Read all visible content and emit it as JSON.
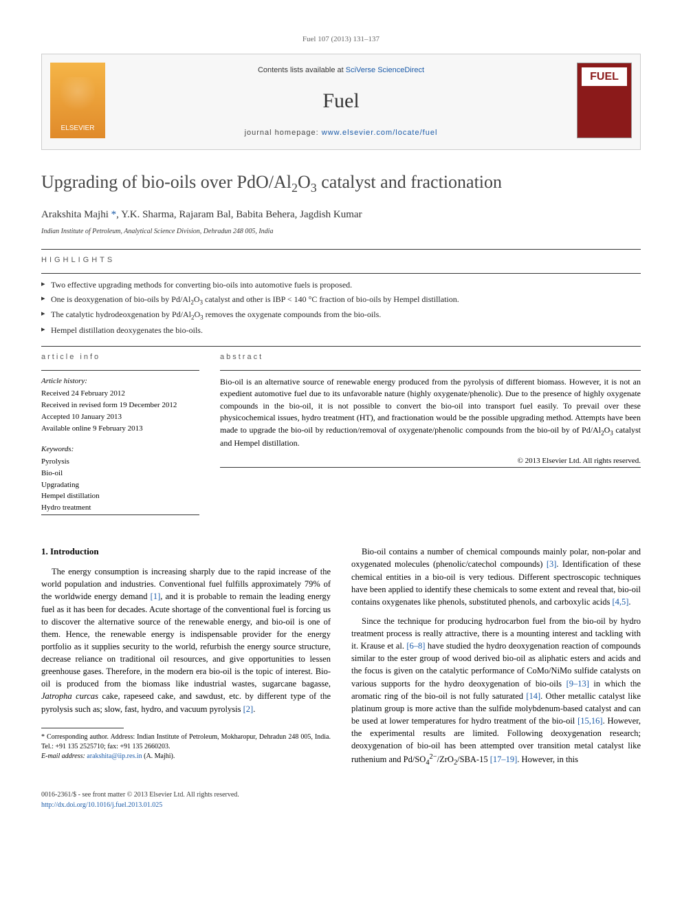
{
  "citation": "Fuel 107 (2013) 131–137",
  "header": {
    "contents_prefix": "Contents lists available at ",
    "contents_link": "SciVerse ScienceDirect",
    "journal_name": "Fuel",
    "homepage_prefix": "journal homepage: ",
    "homepage_url": "www.elsevier.com/locate/fuel",
    "publisher_logo_text": "ELSEVIER",
    "cover_title": "FUEL"
  },
  "title_html": "Upgrading of bio-oils over PdO/Al<sub>2</sub>O<sub>3</sub> catalyst and fractionation",
  "authors_html": "Arakshita Majhi <span class='star'>*</span>, Y.K. Sharma, Rajaram Bal, Babita Behera, Jagdish Kumar",
  "affiliation": "Indian Institute of Petroleum, Analytical Science Division, Dehradun 248 005, India",
  "highlights_label": "highlights",
  "highlights": [
    "Two effective upgrading methods for converting bio-oils into automotive fuels is proposed.",
    "One is deoxygenation of bio-oils by Pd/Al<sub>2</sub>O<sub>3</sub> catalyst and other is IBP < 140 °C fraction of bio-oils by Hempel distillation.",
    "The catalytic hydrodeoxgenation by Pd/Al<sub>2</sub>O<sub>3</sub> removes the oxygenate compounds from the bio-oils.",
    "Hempel distillation deoxygenates the bio-oils."
  ],
  "article_info": {
    "label": "article info",
    "history_label": "Article history:",
    "history": [
      "Received 24 February 2012",
      "Received in revised form 19 December 2012",
      "Accepted 10 January 2013",
      "Available online 9 February 2013"
    ],
    "keywords_label": "Keywords:",
    "keywords": [
      "Pyrolysis",
      "Bio-oil",
      "Upgradating",
      "Hempel distillation",
      "Hydro treatment"
    ]
  },
  "abstract": {
    "label": "abstract",
    "text_html": "Bio-oil is an alternative source of renewable energy produced from the pyrolysis of different biomass. However, it is not an expedient automotive fuel due to its unfavorable nature (highly oxygenate/phenolic). Due to the presence of highly oxygenate compounds in the bio-oil, it is not possible to convert the bio-oil into transport fuel easily. To prevail over these physicochemical issues, hydro treatment (HT), and fractionation would be the possible upgrading method. Attempts have been made to upgrade the bio-oil by reduction/removal of oxygenate/phenolic compounds from the bio-oil by of Pd/Al<sub>2</sub>O<sub>3</sub> catalyst and Hempel distillation.",
    "copyright": "© 2013 Elsevier Ltd. All rights reserved."
  },
  "intro": {
    "heading": "1. Introduction",
    "col1_p1_html": "The energy consumption is increasing sharply due to the rapid increase of the world population and industries. Conventional fuel fulfills approximately 79% of the worldwide energy demand <span class='cite'>[1]</span>, and it is probable to remain the leading energy fuel as it has been for decades. Acute shortage of the conventional fuel is forcing us to discover the alternative source of the renewable energy, and bio-oil is one of them. Hence, the renewable energy is indispensable provider for the energy portfolio as it supplies security to the world, refurbish the energy source structure, decrease reliance on traditional oil resources, and give opportunities to lessen greenhouse gases. Therefore, in the modern era bio-oil is the topic of interest. Bio-oil is produced from the biomass like industrial wastes, sugarcane bagasse, <em>Jatropha curcas</em> cake, rapeseed cake, and sawdust, etc. by different type of the pyrolysis such as; slow, fast, hydro, and vacuum pyrolysis <span class='cite'>[2]</span>.",
    "col2_p1_html": "Bio-oil contains a number of chemical compounds mainly polar, non-polar and oxygenated molecules (phenolic/catechol compounds) <span class='cite'>[3]</span>. Identification of these chemical entities in a bio-oil is very tedious. Different spectroscopic techniques have been applied to identify these chemicals to some extent and reveal that, bio-oil contains oxygenates like phenols, substituted phenols, and carboxylic acids <span class='cite'>[4,5]</span>.",
    "col2_p2_html": "Since the technique for producing hydrocarbon fuel from the bio-oil by hydro treatment process is really attractive, there is a mounting interest and tackling with it. Krause et al. <span class='cite'>[6–8]</span> have studied the hydro deoxygenation reaction of compounds similar to the ester group of wood derived bio-oil as aliphatic esters and acids and the focus is given on the catalytic performance of CoMo/NiMo sulfide catalysts on various supports for the hydro deoxygenation of bio-oils <span class='cite'>[9–13]</span> in which the aromatic ring of the bio-oil is not fully saturated <span class='cite'>[14]</span>. Other metallic catalyst like platinum group is more active than the sulfide molybdenum-based catalyst and can be used at lower temperatures for hydro treatment of the bio-oil <span class='cite'>[15,16]</span>. However, the experimental results are limited. Following deoxygenation research; deoxygenation of bio-oil has been attempted over transition metal catalyst like ruthenium and Pd/SO<sub>4</sub><sup>2−</sup>/ZrO<sub>2</sub>/SBA-15 <span class='cite'>[17–19]</span>. However, in this"
  },
  "footnote": {
    "corr_html": "* Corresponding author. Address: Indian Institute of Petroleum, Mokharopur, Dehradun 248 005, India. Tel.: +91 135 2525710; fax: +91 135 2660203.",
    "email_label": "E-mail address:",
    "email": "arakshita@iip.res.in",
    "email_suffix": "(A. Majhi)."
  },
  "footer": {
    "left_line1": "0016-2361/$ - see front matter © 2013 Elsevier Ltd. All rights reserved.",
    "left_line2": "http://dx.doi.org/10.1016/j.fuel.2013.01.025"
  },
  "colors": {
    "link": "#1a5aa8",
    "elsevier_orange_top": "#f5b547",
    "elsevier_orange_bot": "#e08a2a",
    "cover_red": "#8b1a1a",
    "rule": "#333333",
    "bg": "#ffffff"
  },
  "typography": {
    "title_pt": 26,
    "body_pt": 12.5,
    "journal_name_pt": 30,
    "small_pt": 11
  }
}
